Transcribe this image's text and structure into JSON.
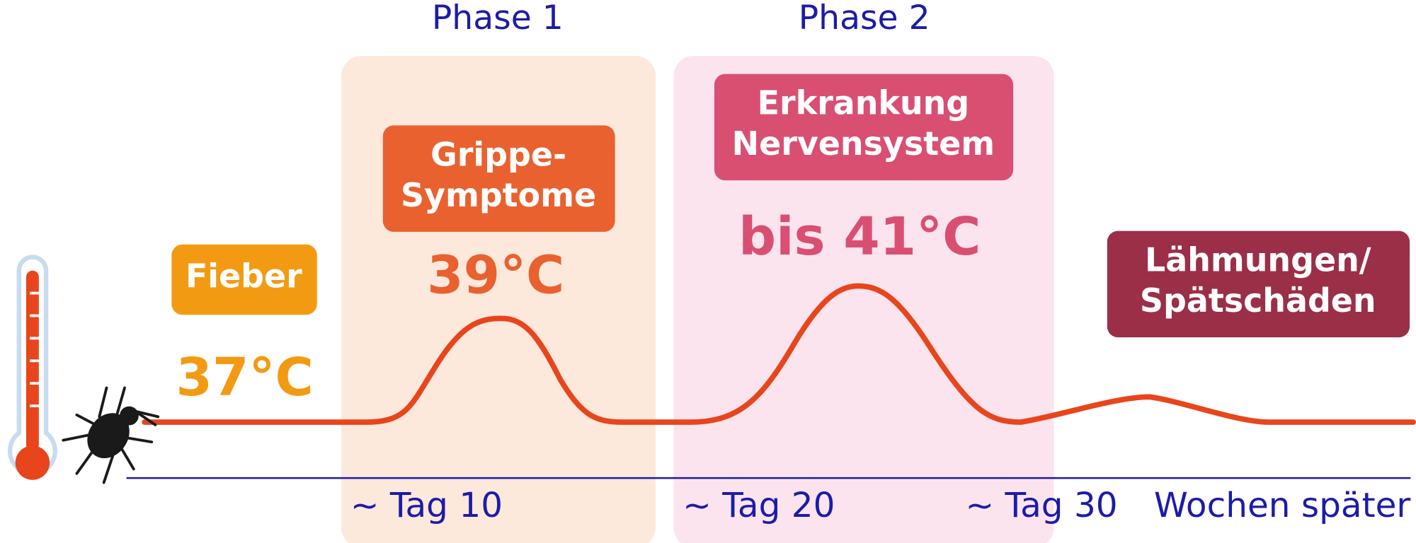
{
  "phases": [
    "Phase 1",
    "Phase 2"
  ],
  "boxes": {
    "fever": "Fieber",
    "flu": [
      "Grippe-",
      "Symptome"
    ],
    "nervous": [
      "Erkrankung",
      "Nervensystem"
    ],
    "paralysis": [
      "Lähmungen/",
      "Spätschäden"
    ]
  },
  "temperatures": {
    "normal": "37°C",
    "phase1": "39°C",
    "phase2": "bis 41°C"
  },
  "axis_labels": [
    "~ Tag 10",
    "~ Tag 20",
    "~ Tag 30",
    "Wochen später"
  ]
}
